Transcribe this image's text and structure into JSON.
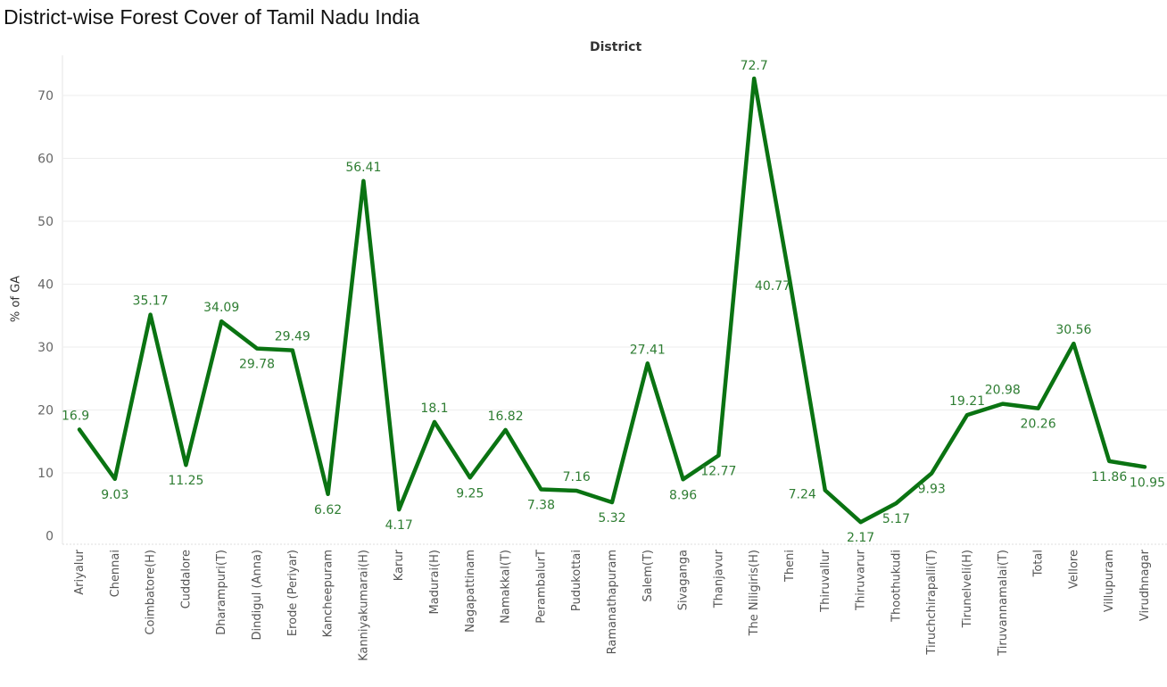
{
  "page": {
    "title": "District-wise Forest Cover of Tamil Nadu India",
    "axis_header": "District"
  },
  "colors": {
    "line": "#0a7312",
    "label": "#2e7d32",
    "grid": "#eeeeee"
  },
  "chart_data": {
    "type": "line",
    "title": "District-wise Forest Cover of Tamil Nadu India",
    "xlabel": "District",
    "ylabel": "% of GA",
    "ylim": [
      -1.5,
      75
    ],
    "yticks": [
      0,
      10,
      20,
      30,
      40,
      50,
      60,
      70
    ],
    "grid": true,
    "categories": [
      "Ariyalur",
      "Chennai",
      "Coimbatore(H)",
      "Cuddalore",
      "Dharampuri(T)",
      "Dindigul (Anna)",
      "Erode (Periyar)",
      "Kancheepuram",
      "Kanniyakumarai(H)",
      "Karur",
      "Madurai(H)",
      "Nagapattinam",
      "Namakkal(T)",
      "PerambalurT",
      "Pudukottai",
      "Ramanathapuram",
      "Salem(T)",
      "Sivaganga",
      "Thanjavur",
      "The Niligiris(H)",
      "Theni",
      "Thiruvallur",
      "Thiruvarur",
      "Thoothukudi",
      "Tiruchchirapalli(T)",
      "Tirunelveli(H)",
      "Tiruvannamalai(T)",
      "Total",
      "Vellore",
      "Villupuram",
      "Virudhnagar"
    ],
    "values": [
      16.9,
      9.03,
      35.17,
      11.25,
      34.09,
      29.78,
      29.49,
      6.62,
      56.41,
      4.17,
      18.1,
      9.25,
      16.82,
      7.38,
      7.16,
      5.32,
      27.41,
      8.96,
      12.77,
      72.7,
      40.77,
      7.24,
      2.17,
      5.17,
      9.93,
      19.21,
      20.98,
      20.26,
      30.56,
      11.86,
      10.95
    ],
    "labels": [
      "16.9",
      "9.03",
      "35.17",
      "11.25",
      "34.09",
      "29.78",
      "29.49",
      "6.62",
      "56.41",
      "4.17",
      "18.1",
      "9.25",
      "16.82",
      "7.38",
      "7.16",
      "5.32",
      "27.41",
      "8.96",
      "12.77",
      "72.7",
      "40.77",
      "7.24",
      "2.17",
      "5.17",
      "9.93",
      "19.21",
      "20.98",
      "20.26",
      "30.56",
      "11.86",
      "10.95"
    ],
    "label_positions": [
      "above",
      "below",
      "above",
      "below",
      "above",
      "below",
      "above",
      "below",
      "above",
      "below",
      "above",
      "below",
      "above",
      "below",
      "above",
      "below",
      "above",
      "below",
      "below",
      "above",
      "below",
      "left",
      "below",
      "below",
      "below",
      "above",
      "above",
      "below",
      "above",
      "below",
      "below"
    ]
  }
}
